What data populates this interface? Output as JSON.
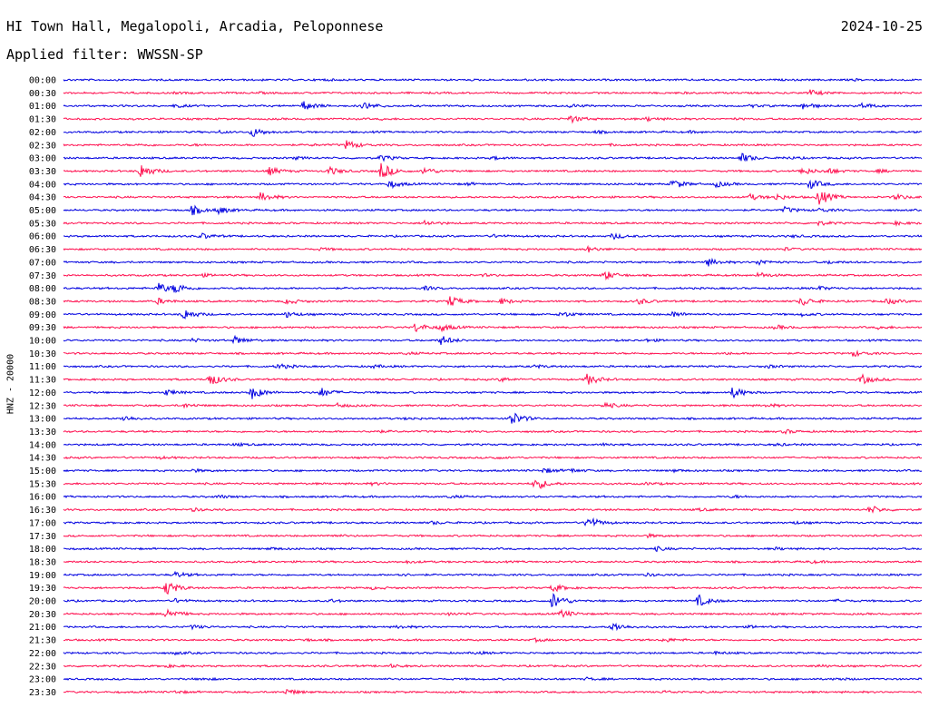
{
  "header": {
    "station": "HI Town Hall, Megalopoli, Arcadia, Peloponnese",
    "date": "2024-10-25",
    "filter": "Applied filter: WWSSN-SP"
  },
  "chart_data": {
    "type": "line",
    "ylabel": "HNZ - 20000",
    "row_colors": [
      "#0000e0",
      "#ff1050"
    ],
    "rows": [
      {
        "time": "00:00",
        "events": [
          [
            30,
            0.8
          ],
          [
            54,
            0.7
          ],
          [
            92,
            0.8
          ]
        ]
      },
      {
        "time": "00:30",
        "events": [
          [
            13,
            0.6
          ],
          [
            23,
            0.5
          ],
          [
            87,
            3
          ],
          [
            72,
            0.5
          ]
        ]
      },
      {
        "time": "01:00",
        "events": [
          [
            13,
            1.5
          ],
          [
            28,
            5
          ],
          [
            35,
            4
          ],
          [
            59,
            1.5
          ],
          [
            86,
            4
          ],
          [
            93,
            3
          ],
          [
            80,
            1.2
          ]
        ]
      },
      {
        "time": "01:30",
        "events": [
          [
            59,
            4
          ],
          [
            68,
            2
          ],
          [
            37,
            0.5
          ],
          [
            78,
            0.6
          ]
        ]
      },
      {
        "time": "02:00",
        "events": [
          [
            22,
            5
          ],
          [
            18,
            1.2
          ],
          [
            62,
            1
          ],
          [
            73,
            0.8
          ]
        ]
      },
      {
        "time": "02:30",
        "events": [
          [
            33,
            5
          ],
          [
            9,
            0.8
          ],
          [
            15,
            0.6
          ],
          [
            29,
            0.8
          ],
          [
            64,
            0.8
          ]
        ]
      },
      {
        "time": "03:00",
        "events": [
          [
            37,
            3
          ],
          [
            50,
            1.5
          ],
          [
            79,
            5
          ],
          [
            84,
            1.2
          ],
          [
            27,
            1.2
          ]
        ]
      },
      {
        "time": "03:30",
        "events": [
          [
            9,
            8
          ],
          [
            24,
            4
          ],
          [
            31,
            4
          ],
          [
            37,
            9
          ],
          [
            42,
            4
          ],
          [
            86,
            4
          ],
          [
            89,
            3
          ],
          [
            95,
            1.5
          ]
        ]
      },
      {
        "time": "04:00",
        "events": [
          [
            38,
            4
          ],
          [
            71,
            5
          ],
          [
            76,
            3
          ],
          [
            87,
            5
          ],
          [
            47,
            1.2
          ]
        ]
      },
      {
        "time": "04:30",
        "events": [
          [
            23,
            5
          ],
          [
            80,
            3
          ],
          [
            83,
            3
          ],
          [
            88,
            9
          ],
          [
            97,
            3
          ]
        ]
      },
      {
        "time": "05:00",
        "events": [
          [
            15,
            5
          ],
          [
            18,
            4
          ],
          [
            84,
            3
          ],
          [
            88,
            2
          ]
        ]
      },
      {
        "time": "05:30",
        "events": [
          [
            42,
            3
          ],
          [
            88,
            2
          ],
          [
            97,
            1.5
          ]
        ]
      },
      {
        "time": "06:00",
        "events": [
          [
            16,
            3
          ],
          [
            64,
            3
          ],
          [
            50,
            1.5
          ],
          [
            85,
            1
          ]
        ]
      },
      {
        "time": "06:30",
        "events": [
          [
            61,
            3
          ],
          [
            30,
            1.2
          ],
          [
            84,
            1.2
          ]
        ]
      },
      {
        "time": "07:00",
        "events": [
          [
            75,
            4
          ],
          [
            81,
            3
          ],
          [
            89,
            1.5
          ]
        ]
      },
      {
        "time": "07:30",
        "events": [
          [
            63,
            5
          ],
          [
            16,
            1.5
          ],
          [
            81,
            3
          ],
          [
            49,
            1
          ]
        ]
      },
      {
        "time": "08:00",
        "events": [
          [
            11,
            6
          ],
          [
            13,
            5
          ],
          [
            42,
            2
          ],
          [
            88,
            2
          ]
        ]
      },
      {
        "time": "08:30",
        "events": [
          [
            11,
            3
          ],
          [
            26,
            3
          ],
          [
            45,
            6
          ],
          [
            51,
            3
          ],
          [
            67,
            3
          ],
          [
            86,
            5
          ],
          [
            96,
            3
          ]
        ]
      },
      {
        "time": "09:00",
        "events": [
          [
            14,
            6
          ],
          [
            26,
            3
          ],
          [
            58,
            3
          ],
          [
            71,
            3
          ],
          [
            86,
            1.5
          ]
        ]
      },
      {
        "time": "09:30",
        "events": [
          [
            41,
            5
          ],
          [
            44,
            4
          ],
          [
            83,
            2
          ],
          [
            95,
            1.5
          ]
        ]
      },
      {
        "time": "10:00",
        "events": [
          [
            20,
            4
          ],
          [
            44,
            5
          ],
          [
            15,
            1.5
          ],
          [
            68,
            1.2
          ]
        ]
      },
      {
        "time": "10:30",
        "events": [
          [
            92,
            3
          ],
          [
            40,
            1
          ],
          [
            77,
            1
          ]
        ]
      },
      {
        "time": "11:00",
        "events": [
          [
            25,
            3
          ],
          [
            36,
            1.5
          ],
          [
            55,
            1.5
          ],
          [
            82,
            1.5
          ]
        ]
      },
      {
        "time": "11:30",
        "events": [
          [
            17,
            7
          ],
          [
            61,
            6
          ],
          [
            93,
            5
          ],
          [
            51,
            2
          ]
        ]
      },
      {
        "time": "12:00",
        "events": [
          [
            12,
            3
          ],
          [
            22,
            7
          ],
          [
            30,
            5
          ],
          [
            78,
            6
          ]
        ]
      },
      {
        "time": "12:30",
        "events": [
          [
            14,
            2
          ],
          [
            32,
            2
          ],
          [
            63,
            3
          ],
          [
            82,
            1.5
          ]
        ]
      },
      {
        "time": "13:00",
        "events": [
          [
            7,
            3
          ],
          [
            52,
            9
          ],
          [
            40,
            1
          ]
        ]
      },
      {
        "time": "13:30",
        "events": [
          [
            36,
            1.5
          ],
          [
            84,
            2
          ]
        ]
      },
      {
        "time": "14:00",
        "events": [
          [
            20,
            1.2
          ],
          [
            63,
            1.2
          ],
          [
            83,
            1.2
          ]
        ]
      },
      {
        "time": "14:30",
        "events": [
          [
            11,
            1.2
          ],
          [
            50,
            1.2
          ]
        ]
      },
      {
        "time": "15:00",
        "events": [
          [
            56,
            2.5
          ],
          [
            59,
            2
          ],
          [
            15,
            1.5
          ],
          [
            71,
            1.2
          ]
        ]
      },
      {
        "time": "15:30",
        "events": [
          [
            55,
            7
          ],
          [
            36,
            1.2
          ],
          [
            68,
            1.2
          ]
        ]
      },
      {
        "time": "16:00",
        "events": [
          [
            18,
            1.5
          ],
          [
            45,
            1.2
          ],
          [
            78,
            1.2
          ]
        ]
      },
      {
        "time": "16:30",
        "events": [
          [
            94,
            4
          ],
          [
            15,
            1.5
          ],
          [
            74,
            1.2
          ]
        ]
      },
      {
        "time": "17:00",
        "events": [
          [
            61,
            7
          ],
          [
            43,
            1.5
          ],
          [
            85,
            1.2
          ]
        ]
      },
      {
        "time": "17:30",
        "events": [
          [
            31,
            1.2
          ],
          [
            68,
            1.5
          ]
        ]
      },
      {
        "time": "18:00",
        "events": [
          [
            69,
            2
          ],
          [
            24,
            1.2
          ],
          [
            83,
            1.2
          ]
        ]
      },
      {
        "time": "18:30",
        "events": [
          [
            40,
            1.2
          ],
          [
            87,
            1.2
          ]
        ]
      },
      {
        "time": "19:00",
        "events": [
          [
            13,
            3
          ],
          [
            39,
            1.5
          ],
          [
            68,
            1.2
          ]
        ]
      },
      {
        "time": "19:30",
        "events": [
          [
            12,
            8
          ],
          [
            57,
            4
          ],
          [
            36,
            1.2
          ]
        ]
      },
      {
        "time": "20:00",
        "events": [
          [
            57,
            9
          ],
          [
            74,
            6
          ],
          [
            13,
            2
          ],
          [
            31,
            1.5
          ],
          [
            90,
            1.2
          ]
        ]
      },
      {
        "time": "20:30",
        "events": [
          [
            12,
            6
          ],
          [
            58,
            4
          ],
          [
            45,
            1.2
          ]
        ]
      },
      {
        "time": "21:00",
        "events": [
          [
            15,
            2
          ],
          [
            64,
            5
          ],
          [
            39,
            1.5
          ],
          [
            80,
            1.2
          ]
        ]
      },
      {
        "time": "21:30",
        "events": [
          [
            55,
            1.5
          ],
          [
            70,
            2
          ],
          [
            28,
            1.2
          ]
        ]
      },
      {
        "time": "22:00",
        "events": [
          [
            13,
            1.2
          ],
          [
            48,
            1.2
          ],
          [
            76,
            1.2
          ]
        ]
      },
      {
        "time": "22:30",
        "events": [
          [
            12,
            1.2
          ],
          [
            38,
            1.5
          ],
          [
            88,
            1.2
          ]
        ]
      },
      {
        "time": "23:00",
        "events": [
          [
            16,
            1.2
          ],
          [
            61,
            1.2
          ],
          [
            90,
            1.2
          ]
        ]
      },
      {
        "time": "23:30",
        "events": [
          [
            26,
            3
          ],
          [
            13,
            1.2
          ],
          [
            70,
            1.2
          ]
        ]
      }
    ]
  }
}
